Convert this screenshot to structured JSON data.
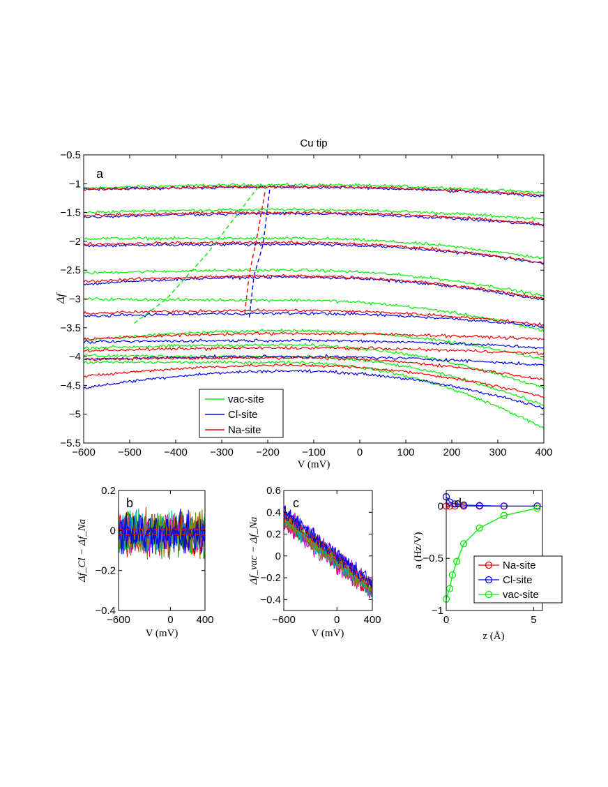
{
  "chart_data": [
    {
      "id": "a",
      "type": "line",
      "title": "Cu tip",
      "panel_label": "a",
      "xlabel": "V (mV)",
      "ylabel": "Δf",
      "xlim": [
        -600,
        400
      ],
      "ylim": [
        -5.5,
        -0.5
      ],
      "xticks": [
        -600,
        -500,
        -400,
        -300,
        -200,
        -100,
        0,
        100,
        200,
        300,
        400
      ],
      "yticks": [
        -5.5,
        -5,
        -4.5,
        -4,
        -3.5,
        -3,
        -2.5,
        -2,
        -1.5,
        -1,
        -0.5
      ],
      "grid": false,
      "legend": {
        "placement": "bottom-left",
        "entries": [
          "vac-site",
          "Cl-site",
          "Na-site"
        ]
      },
      "series": [
        {
          "name": "vac-site",
          "color": "#00ee00",
          "curves": [
            [
              -1.08,
              -1.02,
              -1.16
            ],
            [
              -1.5,
              -1.45,
              -1.62
            ],
            [
              -1.95,
              -1.95,
              -2.3
            ],
            [
              -2.55,
              -2.5,
              -2.95
            ],
            [
              -3.0,
              -3.02,
              -3.55
            ],
            [
              -3.72,
              -3.55,
              -4.05
            ],
            [
              -3.85,
              -3.8,
              -4.55
            ],
            [
              -3.98,
              -4.0,
              -4.85
            ],
            [
              -4.1,
              -4.1,
              -5.25
            ]
          ]
        },
        {
          "name": "Cl-site",
          "color": "#0000ee",
          "curves": [
            [
              -1.1,
              -1.06,
              -1.22
            ],
            [
              -1.58,
              -1.52,
              -1.72
            ],
            [
              -2.08,
              -2.05,
              -2.38
            ],
            [
              -2.75,
              -2.62,
              -3.02
            ],
            [
              -3.3,
              -3.25,
              -3.48
            ],
            [
              -3.75,
              -3.72,
              -3.85
            ],
            [
              -4.05,
              -4.0,
              -4.15
            ],
            [
              -4.55,
              -4.25,
              -4.9
            ]
          ]
        },
        {
          "name": "Na-site",
          "color": "#ee0000",
          "curves": [
            [
              -1.1,
              -1.05,
              -1.2
            ],
            [
              -1.56,
              -1.5,
              -1.7
            ],
            [
              -2.05,
              -2.02,
              -2.38
            ],
            [
              -2.7,
              -2.6,
              -3.0
            ],
            [
              -3.25,
              -3.2,
              -3.45
            ],
            [
              -3.7,
              -3.6,
              -3.7
            ],
            [
              -3.9,
              -3.85,
              -3.95
            ],
            [
              -4.05,
              -4.02,
              -4.4
            ],
            [
              -4.35,
              -4.15,
              -4.7
            ]
          ]
        }
      ],
      "dashed_loci": [
        {
          "color": "#00ee00",
          "points": [
            [
              -490,
              -3.42
            ],
            [
              -420,
              -3.0
            ],
            [
              -330,
              -2.2
            ],
            [
              -220,
              -1.05
            ]
          ]
        },
        {
          "color": "#0000ee",
          "points": [
            [
              -240,
              -3.32
            ],
            [
              -230,
              -2.6
            ],
            [
              -210,
              -2.05
            ],
            [
              -195,
              -1.05
            ]
          ]
        },
        {
          "color": "#ee0000",
          "points": [
            [
              -250,
              -3.25
            ],
            [
              -240,
              -2.55
            ],
            [
              -225,
              -2.0
            ],
            [
              -205,
              -1.1
            ]
          ]
        }
      ]
    },
    {
      "id": "b",
      "type": "line",
      "panel_label": "b",
      "xlabel": "V (mV)",
      "ylabel": "Δf_Cl − Δf_Na",
      "xlim": [
        -600,
        400
      ],
      "ylim": [
        -0.4,
        0.2
      ],
      "xticks": [
        -600,
        0,
        400
      ],
      "yticks": [
        -0.4,
        -0.2,
        0,
        0.2
      ],
      "band_center": -0.03,
      "band_halfwidth": 0.13
    },
    {
      "id": "c",
      "type": "line",
      "panel_label": "c",
      "xlabel": "V (mV)",
      "ylabel": "Δf_vac − Δf_Na",
      "xlim": [
        -600,
        400
      ],
      "ylim": [
        -0.5,
        0.6
      ],
      "xticks": [
        -600,
        0,
        400
      ],
      "yticks": [
        -0.4,
        -0.2,
        0,
        0.2,
        0.4,
        0.6
      ],
      "trend": [
        [
          -600,
          0.35
        ],
        [
          400,
          -0.3
        ]
      ],
      "band_halfwidth": 0.12
    },
    {
      "id": "d",
      "type": "line",
      "panel_label": "d",
      "xlabel": "z (Å)",
      "ylabel": "a (Hz/V)",
      "xlim": [
        0,
        5.5
      ],
      "ylim": [
        -1,
        0.15
      ],
      "xticks": [
        0,
        5
      ],
      "yticks": [
        -1,
        -0.5,
        0
      ],
      "legend": {
        "placement": "bottom-right",
        "entries": [
          "Na-site",
          "Cl-site",
          "vac-site"
        ]
      },
      "series": [
        {
          "name": "Na-site",
          "color": "#ee0000",
          "x": [
            0,
            0.2,
            0.5,
            1.0,
            1.9,
            3.3,
            5.2
          ],
          "y": [
            0.0,
            0.0,
            0.0,
            0.0,
            0.0,
            0.0,
            0.0
          ]
        },
        {
          "name": "Cl-site",
          "color": "#0000ee",
          "x": [
            0,
            0.2,
            0.5,
            1.0,
            1.9,
            3.3,
            5.2
          ],
          "y": [
            0.09,
            0.04,
            0.02,
            0.01,
            0.005,
            0.0,
            0.0
          ]
        },
        {
          "name": "vac-site",
          "color": "#00ee00",
          "x": [
            0,
            0.2,
            0.35,
            0.6,
            1.0,
            1.9,
            3.3,
            5.2
          ],
          "y": [
            -0.89,
            -0.79,
            -0.66,
            -0.53,
            -0.36,
            -0.21,
            -0.09,
            -0.02
          ]
        }
      ]
    }
  ]
}
